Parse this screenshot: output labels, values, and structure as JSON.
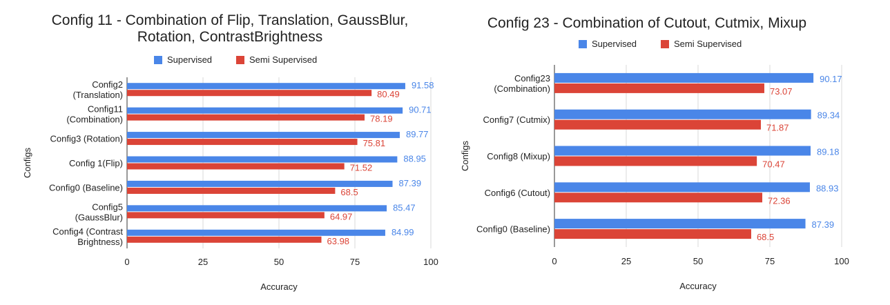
{
  "colors": {
    "supervised": "#4a86e8",
    "semi_supervised": "#db4437",
    "grid": "#d9d9d9",
    "axis": "#333333"
  },
  "chart_data": [
    {
      "type": "bar",
      "orientation": "horizontal",
      "title_lines": [
        "Config 11 - Combination of Flip, Translation, GaussBlur,",
        "Rotation, ContrastBrightness"
      ],
      "legend": [
        "Supervised",
        "Semi Supervised"
      ],
      "legend_position": "top",
      "xlabel": "Accuracy",
      "ylabel": "Configs",
      "xlim": [
        0,
        100
      ],
      "xticks": [
        0,
        25,
        50,
        75,
        100
      ],
      "grid": true,
      "categories": [
        [
          "Config2",
          "(Translation)"
        ],
        [
          "Config11",
          "(Combination)"
        ],
        [
          "Config3 (Rotation)"
        ],
        [
          "Config 1(Flip)"
        ],
        [
          "Config0 (Baseline)"
        ],
        [
          "Config5",
          "(GaussBlur)"
        ],
        [
          "Config4 (Contrast",
          "Brightness)"
        ]
      ],
      "series": [
        {
          "name": "Supervised",
          "values": [
            91.58,
            90.71,
            89.77,
            88.95,
            87.39,
            85.47,
            84.99
          ]
        },
        {
          "name": "Semi Supervised",
          "values": [
            80.49,
            78.19,
            75.81,
            71.52,
            68.5,
            64.97,
            63.98
          ]
        }
      ]
    },
    {
      "type": "bar",
      "orientation": "horizontal",
      "title_lines": [
        "Config 23 - Combination of Cutout, Cutmix, Mixup"
      ],
      "legend": [
        "Supervised",
        "Semi Supervised"
      ],
      "legend_position": "top",
      "xlabel": "Accuracy",
      "ylabel": "Configs",
      "xlim": [
        0,
        100
      ],
      "xticks": [
        0,
        25,
        50,
        75,
        100
      ],
      "grid": true,
      "categories": [
        [
          "Config23",
          "(Combination)"
        ],
        [
          "Config7 (Cutmix)"
        ],
        [
          "Config8 (Mixup)"
        ],
        [
          "Config6 (Cutout)"
        ],
        [
          "Config0 (Baseline)"
        ]
      ],
      "series": [
        {
          "name": "Supervised",
          "values": [
            90.17,
            89.34,
            89.18,
            88.93,
            87.39
          ]
        },
        {
          "name": "Semi Supervised",
          "values": [
            73.07,
            71.87,
            70.47,
            72.36,
            68.5
          ]
        }
      ]
    }
  ]
}
